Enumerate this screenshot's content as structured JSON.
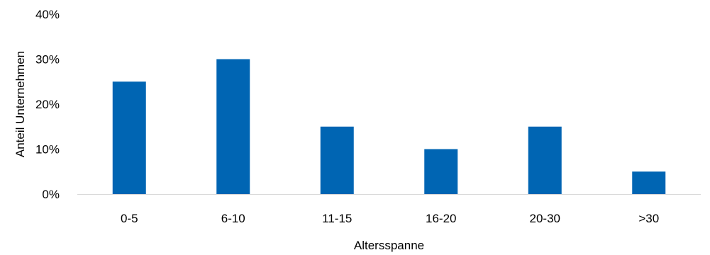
{
  "chart_data": {
    "type": "bar",
    "categories": [
      "0-5",
      "6-10",
      "11-15",
      "16-20",
      "20-30",
      ">30"
    ],
    "values": [
      25,
      30,
      15,
      10,
      15,
      5
    ],
    "yticks": [
      "0%",
      "10%",
      "20%",
      "30%",
      "40%"
    ],
    "ytick_values": [
      0,
      10,
      20,
      30,
      40
    ],
    "ylim": [
      0,
      40
    ],
    "xlabel": "Altersspanne",
    "ylabel": "Anteil Unternehmen",
    "title": "",
    "grid": false,
    "legend": "none",
    "bar_color": "#0065B3",
    "axis_color": "#D9D9D9"
  }
}
